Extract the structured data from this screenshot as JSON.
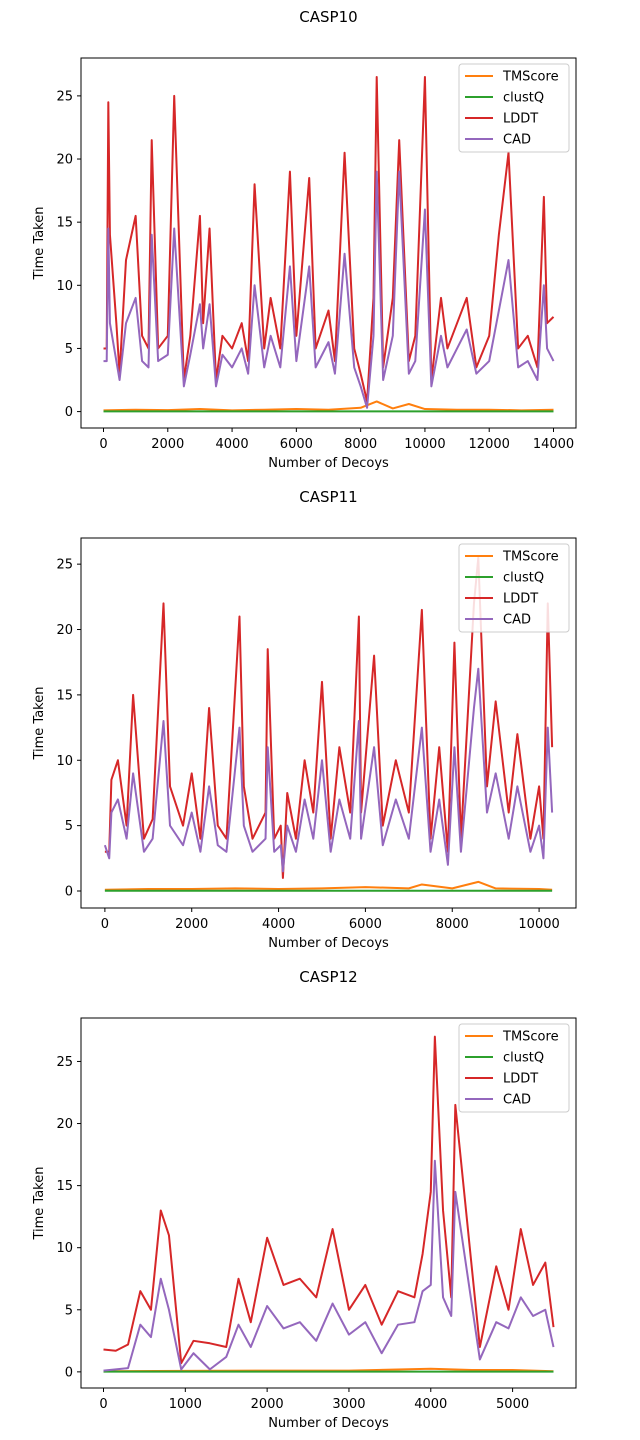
{
  "colors": {
    "TMScore": "#ff7f0e",
    "clustQ": "#2ca02c",
    "LDDT": "#d62728",
    "CAD": "#9467bd"
  },
  "chart_data": [
    {
      "type": "line",
      "title": "CASP10",
      "xlabel": "Number of Decoys",
      "ylabel": "Time Taken",
      "xlim": [
        -700,
        14700
      ],
      "ylim": [
        -1.3,
        28.0
      ],
      "xticks": [
        0,
        2000,
        4000,
        6000,
        8000,
        10000,
        12000,
        14000
      ],
      "xtick_labels": [
        "0",
        "2000",
        "4000",
        "6000",
        "8000",
        "10000",
        "12000",
        "14000"
      ],
      "yticks": [
        0,
        5,
        10,
        15,
        20,
        25
      ],
      "ytick_labels": [
        "0",
        "5",
        "10",
        "15",
        "20",
        "25"
      ],
      "legend": {
        "position": "top-right",
        "entries": [
          "TMScore",
          "clustQ",
          "LDDT",
          "CAD"
        ]
      },
      "series": [
        {
          "name": "TMScore",
          "x": [
            0,
            1000,
            2000,
            3000,
            4000,
            5000,
            6000,
            7000,
            8000,
            8500,
            9000,
            9500,
            10000,
            11000,
            12000,
            13000,
            14000
          ],
          "values": [
            0.1,
            0.15,
            0.12,
            0.2,
            0.1,
            0.15,
            0.2,
            0.15,
            0.3,
            0.8,
            0.25,
            0.6,
            0.2,
            0.15,
            0.15,
            0.1,
            0.15
          ]
        },
        {
          "name": "clustQ",
          "x": [
            0,
            14000
          ],
          "values": [
            0.02,
            0.02
          ]
        },
        {
          "name": "LDDT",
          "x": [
            0,
            100,
            150,
            200,
            400,
            500,
            700,
            1000,
            1200,
            1400,
            1500,
            1700,
            2000,
            2200,
            2500,
            2700,
            3000,
            3100,
            3300,
            3500,
            3700,
            4000,
            4300,
            4500,
            4700,
            5000,
            5200,
            5500,
            5800,
            6000,
            6400,
            6600,
            7000,
            7200,
            7500,
            7800,
            8000,
            8200,
            8400,
            8500,
            8700,
            9000,
            9200,
            9500,
            9700,
            10000,
            10200,
            10500,
            10700,
            11000,
            11300,
            11600,
            12000,
            12300,
            12600,
            12900,
            13200,
            13500,
            13700,
            13800,
            14000
          ],
          "values": [
            5,
            5,
            24.5,
            14,
            7,
            3,
            12,
            15.5,
            6,
            5,
            21.5,
            5,
            6,
            25,
            2.5,
            6,
            15.5,
            7,
            14.5,
            2.5,
            6,
            5,
            7,
            4,
            18,
            5,
            9,
            5,
            19,
            6,
            18.5,
            5,
            8,
            4,
            20.5,
            5,
            3,
            0.8,
            9,
            26.5,
            3.5,
            9,
            21.5,
            4,
            6,
            26.5,
            2.5,
            9,
            5,
            7,
            9,
            3.5,
            6,
            14,
            20.5,
            5,
            6,
            3.5,
            17,
            7,
            7.5
          ]
        },
        {
          "name": "CAD",
          "x": [
            0,
            100,
            150,
            200,
            400,
            500,
            700,
            1000,
            1200,
            1400,
            1500,
            1700,
            2000,
            2200,
            2500,
            2700,
            3000,
            3100,
            3300,
            3500,
            3700,
            4000,
            4300,
            4500,
            4700,
            5000,
            5200,
            5500,
            5800,
            6000,
            6400,
            6600,
            7000,
            7200,
            7500,
            7800,
            8000,
            8200,
            8400,
            8500,
            8700,
            9000,
            9200,
            9500,
            9700,
            10000,
            10200,
            10500,
            10700,
            11000,
            11300,
            11600,
            12000,
            12300,
            12600,
            12900,
            13200,
            13500,
            13700,
            13800,
            14000
          ],
          "values": [
            4,
            4,
            14.5,
            7,
            4,
            2.5,
            7,
            9,
            4,
            3.5,
            14,
            4,
            4.5,
            14.5,
            2,
            4.5,
            8.5,
            5,
            8.5,
            2,
            4.5,
            3.5,
            5,
            3,
            10,
            3.5,
            6,
            3.5,
            11.5,
            4,
            11.5,
            3.5,
            5.5,
            3,
            12.5,
            3.5,
            2,
            0.3,
            6,
            19,
            2.5,
            6,
            19,
            3,
            4,
            16,
            2,
            6,
            3.5,
            5,
            6.5,
            3,
            4,
            8,
            12,
            3.5,
            4,
            2.5,
            10,
            5,
            4
          ]
        }
      ]
    },
    {
      "type": "line",
      "title": "CASP11",
      "xlabel": "Number of Decoys",
      "ylabel": "Time Taken",
      "xlim": [
        -550,
        10850
      ],
      "ylim": [
        -1.3,
        27.0
      ],
      "xticks": [
        0,
        2000,
        4000,
        6000,
        8000,
        10000
      ],
      "xtick_labels": [
        "0",
        "2000",
        "4000",
        "6000",
        "8000",
        "10000"
      ],
      "yticks": [
        0,
        5,
        10,
        15,
        20,
        25
      ],
      "ytick_labels": [
        "0",
        "5",
        "10",
        "15",
        "20",
        "25"
      ],
      "legend": {
        "position": "top-right",
        "entries": [
          "TMScore",
          "clustQ",
          "LDDT",
          "CAD"
        ]
      },
      "series": [
        {
          "name": "TMScore",
          "x": [
            0,
            1000,
            2000,
            3000,
            4000,
            5000,
            6000,
            7000,
            7300,
            8000,
            8600,
            9000,
            10000,
            10300
          ],
          "values": [
            0.1,
            0.15,
            0.15,
            0.2,
            0.15,
            0.2,
            0.3,
            0.2,
            0.5,
            0.2,
            0.7,
            0.2,
            0.15,
            0.1
          ]
        },
        {
          "name": "clustQ",
          "x": [
            0,
            10300
          ],
          "values": [
            0.02,
            0.02
          ]
        },
        {
          "name": "LDDT",
          "x": [
            0,
            100,
            150,
            300,
            500,
            650,
            900,
            1100,
            1350,
            1500,
            1800,
            2000,
            2200,
            2400,
            2600,
            2800,
            3100,
            3200,
            3400,
            3700,
            3750,
            3900,
            4050,
            4100,
            4200,
            4400,
            4600,
            4800,
            5000,
            5200,
            5400,
            5650,
            5850,
            5900,
            6200,
            6400,
            6700,
            7000,
            7300,
            7500,
            7700,
            7900,
            8050,
            8200,
            8500,
            8600,
            8800,
            9000,
            9300,
            9500,
            9800,
            10000,
            10100,
            10200,
            10300
          ],
          "values": [
            3,
            3,
            8.5,
            10,
            5,
            15,
            4,
            5.5,
            22,
            8,
            5,
            9,
            4,
            14,
            5,
            4,
            21,
            8,
            4,
            6,
            18.5,
            4,
            5,
            1,
            7.5,
            4,
            10,
            6,
            16,
            4,
            11,
            6,
            21,
            6,
            18,
            5,
            10,
            6,
            21.5,
            4,
            11,
            3,
            19,
            4,
            22,
            25.5,
            8,
            14.5,
            6,
            12,
            4,
            8,
            4,
            22,
            11
          ]
        },
        {
          "name": "CAD",
          "x": [
            0,
            100,
            150,
            300,
            500,
            650,
            900,
            1100,
            1350,
            1500,
            1800,
            2000,
            2200,
            2400,
            2600,
            2800,
            3100,
            3200,
            3400,
            3700,
            3750,
            3900,
            4050,
            4100,
            4200,
            4400,
            4600,
            4800,
            5000,
            5200,
            5400,
            5650,
            5850,
            5900,
            6200,
            6400,
            6700,
            7000,
            7300,
            7500,
            7700,
            7900,
            8050,
            8200,
            8500,
            8600,
            8800,
            9000,
            9300,
            9500,
            9800,
            10000,
            10100,
            10200,
            10300
          ],
          "values": [
            3.5,
            2.5,
            6,
            7,
            4,
            9,
            3,
            4,
            13,
            5,
            3.5,
            6,
            3,
            8,
            3.5,
            3,
            12.5,
            5,
            3,
            4,
            11,
            3,
            3.5,
            1.5,
            5,
            3,
            7,
            4,
            10,
            3,
            7,
            4,
            13,
            4,
            11,
            3.5,
            7,
            4,
            12.5,
            3,
            7,
            2,
            11,
            3,
            14,
            17,
            6,
            9,
            4,
            8,
            3,
            5,
            2.5,
            12.5,
            6
          ]
        }
      ]
    },
    {
      "type": "line",
      "title": "CASP12",
      "xlabel": "Number of Decoys",
      "ylabel": "Time Taken",
      "xlim": [
        -275,
        5775
      ],
      "ylim": [
        -1.3,
        28.5
      ],
      "xticks": [
        0,
        1000,
        2000,
        3000,
        4000,
        5000
      ],
      "xtick_labels": [
        "0",
        "1000",
        "2000",
        "3000",
        "4000",
        "5000"
      ],
      "yticks": [
        0,
        5,
        10,
        15,
        20,
        25
      ],
      "ytick_labels": [
        "0",
        "5",
        "10",
        "15",
        "20",
        "25"
      ],
      "legend": {
        "position": "top-right",
        "entries": [
          "TMScore",
          "clustQ",
          "LDDT",
          "CAD"
        ]
      },
      "series": [
        {
          "name": "TMScore",
          "x": [
            0,
            1000,
            2000,
            3000,
            4000,
            4500,
            5000,
            5500
          ],
          "values": [
            0.05,
            0.08,
            0.1,
            0.1,
            0.25,
            0.15,
            0.15,
            0.05
          ]
        },
        {
          "name": "clustQ",
          "x": [
            0,
            5500
          ],
          "values": [
            0.02,
            0.02
          ]
        },
        {
          "name": "LDDT",
          "x": [
            0,
            150,
            300,
            450,
            580,
            700,
            800,
            950,
            1100,
            1300,
            1500,
            1650,
            1800,
            2000,
            2200,
            2400,
            2600,
            2800,
            3000,
            3200,
            3400,
            3600,
            3800,
            3900,
            4000,
            4050,
            4150,
            4250,
            4300,
            4600,
            4800,
            4950,
            5100,
            5250,
            5400,
            5500
          ],
          "values": [
            1.8,
            1.7,
            2.2,
            6.5,
            5,
            13,
            11,
            0.7,
            2.5,
            2.3,
            2,
            7.5,
            4,
            10.8,
            7,
            7.5,
            6,
            11.5,
            5,
            7,
            3.8,
            6.5,
            6,
            9.5,
            14.5,
            27,
            13,
            6,
            21.5,
            2,
            8.5,
            5,
            11.5,
            7,
            8.8,
            3.6
          ]
        },
        {
          "name": "CAD",
          "x": [
            0,
            150,
            300,
            450,
            580,
            700,
            800,
            950,
            1100,
            1300,
            1500,
            1650,
            1800,
            2000,
            2200,
            2400,
            2600,
            2800,
            3000,
            3200,
            3400,
            3600,
            3800,
            3900,
            4000,
            4050,
            4150,
            4250,
            4300,
            4600,
            4800,
            4950,
            5100,
            5250,
            5400,
            5500
          ],
          "values": [
            0.1,
            0.2,
            0.3,
            3.8,
            2.8,
            7.5,
            5,
            0.2,
            1.5,
            0.2,
            1.2,
            3.8,
            2,
            5.3,
            3.5,
            4,
            2.5,
            5.5,
            3,
            4,
            1.5,
            3.8,
            4,
            6.5,
            7,
            17,
            6,
            4.5,
            14.5,
            1,
            4,
            3.5,
            6,
            4.5,
            5,
            2
          ]
        }
      ]
    }
  ]
}
